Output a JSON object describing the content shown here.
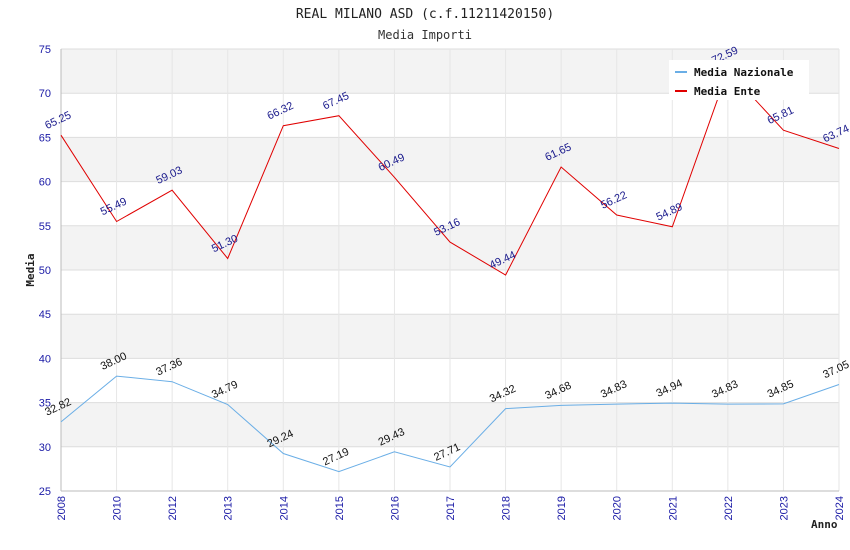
{
  "chart_data": {
    "type": "line",
    "title": "REAL MILANO ASD (c.f.11211420150)",
    "subtitle": "Media Importi",
    "xlabel": "Anno",
    "ylabel": "Media",
    "ylim": [
      25,
      75
    ],
    "yticks": [
      25,
      30,
      35,
      40,
      45,
      50,
      55,
      60,
      65,
      70,
      75
    ],
    "grid": true,
    "legend_position": "top-right",
    "categories": [
      "2008",
      "2010",
      "2012",
      "2013",
      "2014",
      "2015",
      "2016",
      "2017",
      "2018",
      "2019",
      "2020",
      "2021",
      "2022",
      "2023",
      "2024"
    ],
    "series": [
      {
        "name": "Media Nazionale",
        "color": "#6aaee6",
        "values": [
          32.82,
          38.0,
          37.36,
          34.79,
          29.24,
          27.19,
          29.43,
          27.71,
          34.32,
          34.68,
          34.83,
          34.94,
          34.83,
          34.85,
          37.05
        ],
        "labels": [
          "32.82",
          "38.00",
          "37.36",
          "34.79",
          "29.24",
          "27.19",
          "29.43",
          "27.71",
          "34.32",
          "34.68",
          "34.83",
          "34.94",
          "34.83",
          "34.85",
          "37.05"
        ]
      },
      {
        "name": "Media Ente",
        "color": "#e00000",
        "values": [
          65.25,
          55.49,
          59.03,
          51.3,
          66.32,
          67.45,
          60.49,
          53.16,
          49.44,
          61.65,
          56.22,
          54.89,
          72.59,
          65.81,
          63.74
        ],
        "labels": [
          "65.25",
          "55.49",
          "59.03",
          "51.30",
          "66.32",
          "67.45",
          "60.49",
          "53.16",
          "49.44",
          "61.65",
          "56.22",
          "54.89",
          "72.59",
          "65.81",
          "63.74"
        ]
      }
    ]
  },
  "colors": {
    "band_light": "#f3f3f3",
    "grid": "#dddddd",
    "tick_text": "#1a1aa6"
  }
}
